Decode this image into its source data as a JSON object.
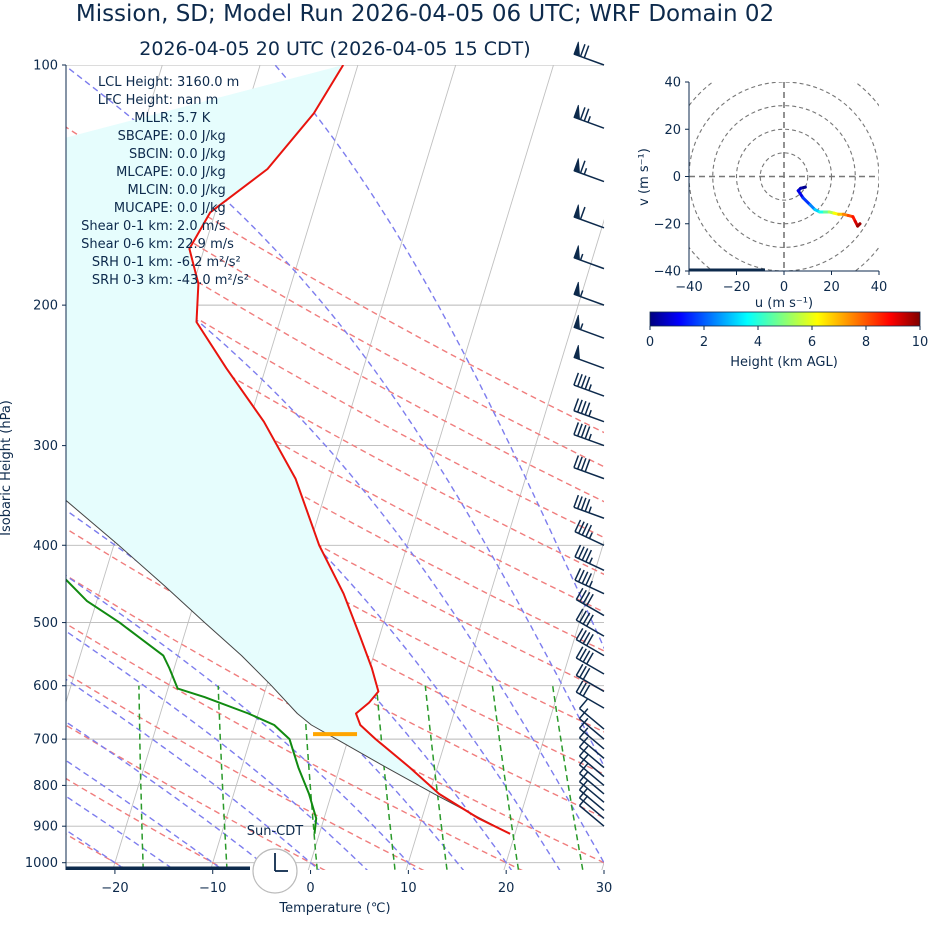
{
  "title": "Mission, SD; Model Run 2026-04-05 06 UTC; WRF Domain 02",
  "subtitle": "2026-04-05 20 UTC  (2026-04-05 15 CDT)",
  "skewt": {
    "xlabel": "Temperature (℃)",
    "ylabel": "Isobaric Height (hPa)",
    "xticks": [
      "−20",
      "−10",
      "0",
      "10",
      "20",
      "30"
    ],
    "yticks": [
      "100",
      "200",
      "300",
      "400",
      "500",
      "600",
      "700",
      "800",
      "900",
      "1000"
    ],
    "clock_label": "Sun-CDT",
    "stats": [
      {
        "label": "LCL Height:",
        "value": "3160.0 m"
      },
      {
        "label": "LFC Height:",
        "value": "nan m"
      },
      {
        "label": "MLLR:",
        "value": "5.7 K"
      },
      {
        "label": "SBCAPE:",
        "value": "0.0 J/kg"
      },
      {
        "label": "SBCIN:",
        "value": "0.0 J/kg"
      },
      {
        "label": "MLCAPE:",
        "value": "0.0 J/kg"
      },
      {
        "label": "MLCIN:",
        "value": "0.0 J/kg"
      },
      {
        "label": "MUCAPE:",
        "value": "0.0 J/kg"
      },
      {
        "label": "Shear 0-1 km:",
        "value": "2.0 m/s"
      },
      {
        "label": "Shear 0-6 km:",
        "value": "22.9 m/s"
      },
      {
        "label": "SRH 0-1 km:",
        "value": "-6.2 m²/s²"
      },
      {
        "label": "SRH 0-3 km:",
        "value": "-43.0 m²/s²"
      }
    ]
  },
  "hodograph": {
    "xlabel": "u (m s⁻¹)",
    "ylabel": "v (m s⁻¹)",
    "xticks": [
      "−40",
      "−20",
      "0",
      "20",
      "40"
    ],
    "yticks": [
      "40",
      "20",
      "0",
      "−20",
      "−40"
    ]
  },
  "colorbar": {
    "label": "Height (km AGL)",
    "ticks": [
      "0",
      "2",
      "4",
      "6",
      "8",
      "10"
    ]
  },
  "colors": {
    "temperature": "#e8140e",
    "dewpoint": "#118a11",
    "parcel": "#444444",
    "cape_fill": "#e6fdfd",
    "dry_adiabat": "#f07d7d",
    "moist_adiabat": "#7d7dee",
    "mixing_ratio": "#2a9a2a",
    "isotherm": "#c0c0c0",
    "barb": "#0d2a4c",
    "lcl_marker": "#ffa500"
  },
  "chart_data": [
    {
      "type": "line",
      "name_hint": "skew-t",
      "x_axis": "temperature_C",
      "y_axis": "pressure_hPa",
      "xlim": [
        -25,
        30
      ],
      "ylim": [
        1050,
        100
      ],
      "y_scale": "log",
      "skew": true,
      "series": [
        {
          "key": "temperature",
          "pressure": [
            920,
            880,
            820,
            760,
            700,
            672,
            650,
            630,
            610,
            570,
            520,
            460,
            400,
            330,
            280,
            240,
            210,
            188,
            170,
            153,
            135,
            115,
            100
          ],
          "values": [
            19.5,
            15.8,
            11.0,
            7.2,
            2.8,
            0.8,
            0.0,
            1.0,
            1.6,
            0.2,
            -2.0,
            -5.0,
            -9.0,
            -13.5,
            -18.5,
            -24.0,
            -28.5,
            -29.5,
            -31.5,
            -30.5,
            -26.0,
            -23.0,
            -21.5
          ]
        },
        {
          "key": "dewpoint",
          "pressure": [
            920,
            880,
            820,
            760,
            700,
            672,
            650,
            620,
            605,
            570,
            550,
            500,
            470,
            440,
            410,
            380,
            350,
            300,
            270,
            240,
            210,
            185,
            165,
            145,
            120,
            100
          ],
          "values": [
            -0.5,
            -0.8,
            -2.3,
            -4.2,
            -6.0,
            -8.0,
            -11.0,
            -16.0,
            -19.0,
            -20.5,
            -21.5,
            -27.0,
            -31.0,
            -34.0,
            -36.0,
            -39.0,
            -42.0,
            -47.0,
            -51.0,
            -56.0,
            -61.0,
            -60.0,
            -61.0,
            -59.0,
            -57.0,
            -58.0
          ]
        },
        {
          "key": "parcel",
          "pressure": [
            920,
            880,
            820,
            760,
            700,
            672,
            650,
            600,
            550,
            500,
            450,
            400,
            350,
            300,
            250,
            200,
            160
          ],
          "values": [
            19.5,
            16.0,
            10.5,
            4.8,
            -1.2,
            -4.2,
            -6.0,
            -9.5,
            -13.5,
            -18.3,
            -23.5,
            -29.5,
            -36.5,
            -45.0,
            -55.0,
            -67.0,
            -80.0
          ]
        }
      ],
      "lcl": {
        "pressure": 690,
        "temperature": -1.5
      },
      "wind_barbs": {
        "pressure": [
          100,
          120,
          140,
          160,
          180,
          200,
          220,
          240,
          260,
          280,
          300,
          330,
          370,
          400,
          430,
          460,
          490,
          520,
          550,
          580,
          610,
          640,
          680,
          700,
          720,
          740,
          760,
          780,
          800,
          820,
          840,
          860,
          880,
          900
        ],
        "speed_kt": [
          70,
          75,
          65,
          60,
          55,
          55,
          55,
          50,
          45,
          45,
          45,
          40,
          45,
          45,
          45,
          45,
          40,
          40,
          40,
          40,
          30,
          30,
          10,
          10,
          10,
          10,
          10,
          10,
          10,
          10,
          10,
          10,
          10,
          10
        ],
        "direction_deg": [
          290,
          290,
          290,
          290,
          290,
          290,
          290,
          290,
          290,
          290,
          290,
          290,
          290,
          295,
          295,
          295,
          300,
          300,
          300,
          300,
          300,
          300,
          310,
          310,
          310,
          310,
          310,
          310,
          310,
          310,
          310,
          310,
          310,
          310
        ]
      }
    },
    {
      "type": "line",
      "name_hint": "hodograph",
      "xlim": [
        -40,
        40
      ],
      "ylim": [
        -40,
        40
      ],
      "u": [
        9,
        7,
        6,
        8,
        11,
        13,
        15,
        17,
        19,
        21,
        23,
        25,
        27,
        29,
        30,
        31,
        32
      ],
      "v": [
        -4.5,
        -5,
        -6,
        -9,
        -12,
        -14,
        -15,
        -15,
        -15,
        -15.5,
        -16,
        -16,
        -16.5,
        -17,
        -19,
        -21,
        -20
      ],
      "height_km": [
        0,
        0.3,
        0.6,
        1.2,
        2.0,
        2.8,
        3.5,
        4.2,
        5.0,
        5.8,
        6.5,
        7.2,
        7.8,
        8.4,
        9.0,
        9.5,
        10.0
      ]
    }
  ]
}
